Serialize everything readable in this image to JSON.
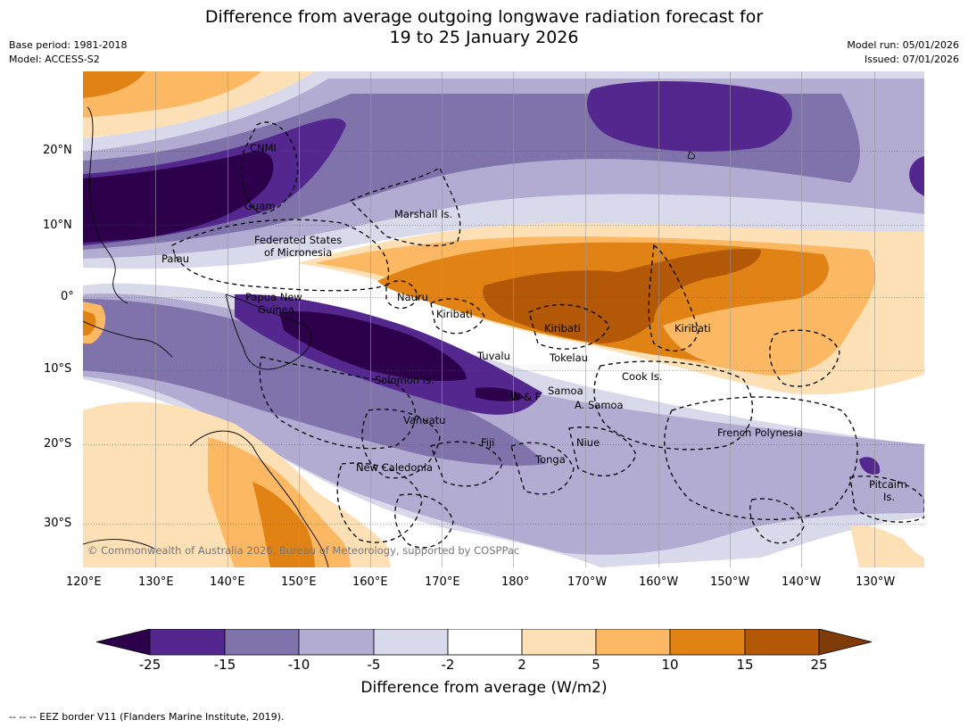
{
  "title_line1": "Difference from average outgoing longwave radiation forecast for",
  "title_line2": "19 to 25 January 2026",
  "base_period": "Base period: 1981-2018",
  "model": "Model: ACCESS-S2",
  "model_run": "Model run: 05/01/2026",
  "issued": "Issued: 07/01/2026",
  "copyright": "© Commonwealth of Australia 2026, Bureau of Meteorology, supported by COSPPac",
  "lon_labels": [
    "120°E",
    "130°E",
    "140°E",
    "150°E",
    "160°E",
    "170°E",
    "180°",
    "170°W",
    "160°W",
    "150°W",
    "140°W",
    "130°W"
  ],
  "lat_labels": [
    "20°N",
    "10°N",
    "0°",
    "10°S",
    "20°S",
    "30°S"
  ],
  "regions": {
    "cnmi": "CNMI",
    "guam": "Guam",
    "marshall": "Marshall Is.",
    "fsm1": "Federated States",
    "fsm2": "of Micronesia",
    "palau": "Palau",
    "png1": "Papua New",
    "png2": "Guinea",
    "nauru": "Nauru",
    "kiribati1": "Kiribati",
    "kiribati2": "Kiribati",
    "kiribati3": "Kiribati",
    "tuvalu": "Tuvalu",
    "tokelau": "Tokelau",
    "cook": "Cook Is.",
    "solomon": "Solomon Is.",
    "wf": "W & F",
    "samoa": "Samoa",
    "asamoa": "A. Samoa",
    "vanuatu": "Vanuatu",
    "fiji": "Fiji",
    "niue": "Niue",
    "tonga": "Tonga",
    "newcal": "New Caledonia",
    "frpoly": "French Polynesia",
    "pitcairn1": "Pitcairn",
    "pitcairn2": "Is."
  },
  "colorbar": {
    "ticks": [
      "-25",
      "-15",
      "-10",
      "-5",
      "-2",
      "2",
      "5",
      "10",
      "15",
      "25"
    ],
    "colors": [
      "#2d004b",
      "#54278f",
      "#8073ac",
      "#b2abd2",
      "#d8daeb",
      "#ffffff",
      "#fee0b6",
      "#fdb863",
      "#e08214",
      "#b35806",
      "#7f3b08"
    ],
    "title": "Difference from average (W/m2)"
  },
  "footnote": "--  --  -- EEZ border V11 (Flanders Marine Institute, 2019)."
}
